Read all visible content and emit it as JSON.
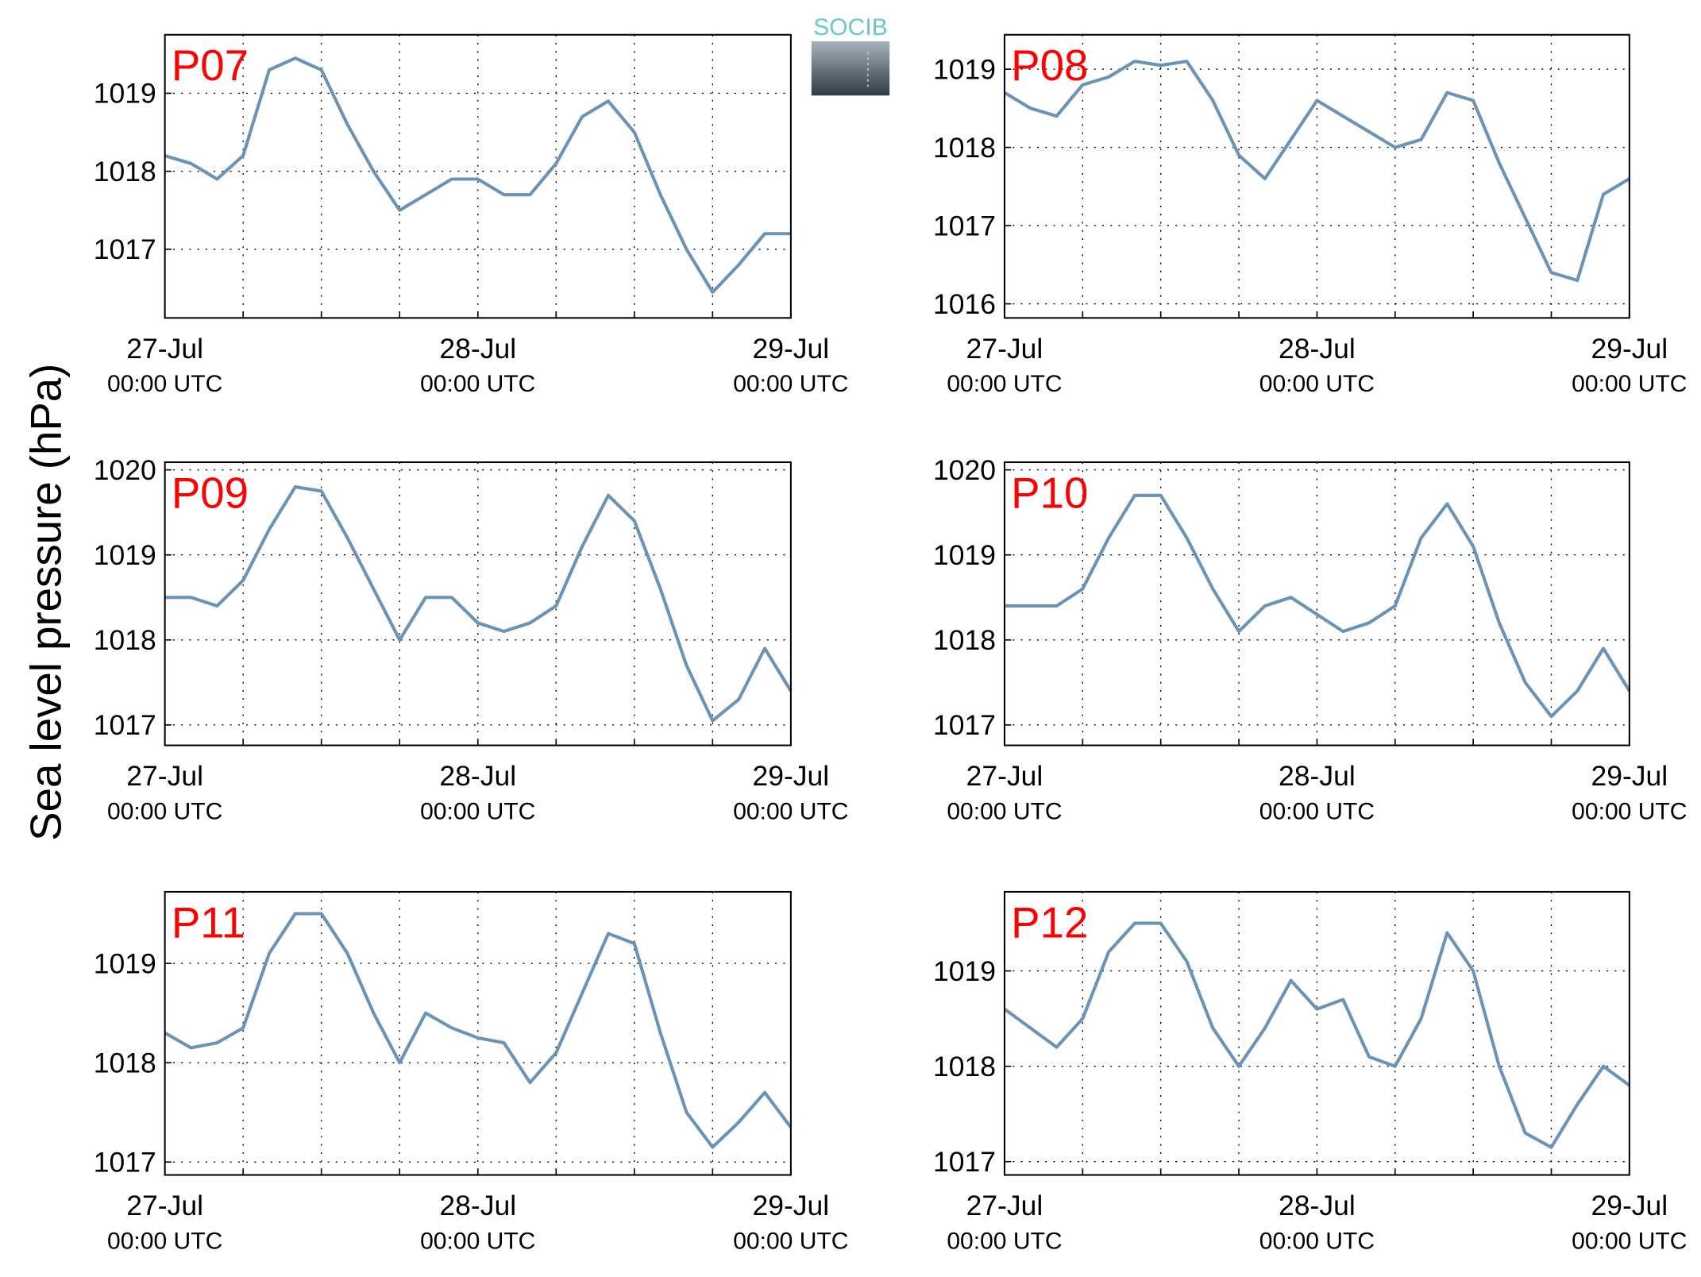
{
  "ylabel": "Sea level pressure (hPa)",
  "logo": "SOCIB",
  "chart_data": [
    {
      "type": "line",
      "title": "P07",
      "color": "#6b93b6",
      "grid": true,
      "x": [
        0,
        2,
        4,
        6,
        8,
        10,
        12,
        14,
        16,
        18,
        20,
        22,
        24,
        26,
        28,
        30,
        32,
        34,
        36,
        38,
        40,
        42,
        44,
        46,
        48
      ],
      "values": [
        1018.2,
        1018.1,
        1017.9,
        1018.2,
        1019.3,
        1019.45,
        1019.3,
        1018.6,
        1018.0,
        1017.5,
        1017.7,
        1017.9,
        1017.9,
        1017.7,
        1017.7,
        1018.1,
        1018.7,
        1018.9,
        1018.5,
        1017.7,
        1017.0,
        1016.45,
        1016.8,
        1017.2,
        1017.2
      ],
      "xlim": [
        0,
        48
      ],
      "ylim": [
        1016.12,
        1019.75
      ],
      "yticks": [
        1017,
        1018,
        1019
      ],
      "xticks": [
        {
          "value": 0,
          "label": "27-Jul",
          "sublabel": "00:00 UTC"
        },
        {
          "value": 24,
          "label": "28-Jul",
          "sublabel": "00:00 UTC"
        },
        {
          "value": 48,
          "label": "29-Jul",
          "sublabel": "00:00 UTC"
        }
      ],
      "xminorticks": [
        6,
        12,
        18,
        30,
        36,
        42
      ]
    },
    {
      "type": "line",
      "title": "P08",
      "color": "#6b93b6",
      "grid": true,
      "x": [
        0,
        2,
        4,
        6,
        8,
        10,
        12,
        14,
        16,
        18,
        20,
        22,
        24,
        26,
        28,
        30,
        32,
        34,
        36,
        38,
        40,
        42,
        44,
        46,
        48
      ],
      "values": [
        1018.7,
        1018.5,
        1018.4,
        1018.8,
        1018.9,
        1019.1,
        1019.05,
        1019.1,
        1018.6,
        1017.9,
        1017.6,
        1018.1,
        1018.6,
        1018.4,
        1018.2,
        1018.0,
        1018.1,
        1018.7,
        1018.6,
        1017.8,
        1017.1,
        1016.4,
        1016.3,
        1017.4,
        1017.6
      ],
      "xlim": [
        0,
        48
      ],
      "ylim": [
        1015.82,
        1019.44
      ],
      "yticks": [
        1016,
        1017,
        1018,
        1019
      ],
      "xticks": [
        {
          "value": 0,
          "label": "27-Jul",
          "sublabel": "00:00 UTC"
        },
        {
          "value": 24,
          "label": "28-Jul",
          "sublabel": "00:00 UTC"
        },
        {
          "value": 48,
          "label": "29-Jul",
          "sublabel": "00:00 UTC"
        }
      ],
      "xminorticks": [
        6,
        12,
        18,
        30,
        36,
        42
      ]
    },
    {
      "type": "line",
      "title": "P09",
      "color": "#6b93b6",
      "grid": true,
      "x": [
        0,
        2,
        4,
        6,
        8,
        10,
        12,
        14,
        16,
        18,
        20,
        22,
        24,
        26,
        28,
        30,
        32,
        34,
        36,
        38,
        40,
        42,
        44,
        46,
        48
      ],
      "values": [
        1018.5,
        1018.5,
        1018.4,
        1018.7,
        1019.3,
        1019.8,
        1019.75,
        1019.2,
        1018.6,
        1018.0,
        1018.5,
        1018.5,
        1018.2,
        1018.1,
        1018.2,
        1018.4,
        1019.1,
        1019.7,
        1019.4,
        1018.6,
        1017.7,
        1017.05,
        1017.3,
        1017.9,
        1017.4
      ],
      "xlim": [
        0,
        48
      ],
      "ylim": [
        1016.76,
        1020.09
      ],
      "yticks": [
        1017,
        1018,
        1019,
        1020
      ],
      "xticks": [
        {
          "value": 0,
          "label": "27-Jul",
          "sublabel": "00:00 UTC"
        },
        {
          "value": 24,
          "label": "28-Jul",
          "sublabel": "00:00 UTC"
        },
        {
          "value": 48,
          "label": "29-Jul",
          "sublabel": "00:00 UTC"
        }
      ],
      "xminorticks": [
        6,
        12,
        18,
        30,
        36,
        42
      ]
    },
    {
      "type": "line",
      "title": "P10",
      "color": "#6b93b6",
      "grid": true,
      "x": [
        0,
        2,
        4,
        6,
        8,
        10,
        12,
        14,
        16,
        18,
        20,
        22,
        24,
        26,
        28,
        30,
        32,
        34,
        36,
        38,
        40,
        42,
        44,
        46,
        48
      ],
      "values": [
        1018.4,
        1018.4,
        1018.4,
        1018.6,
        1019.2,
        1019.7,
        1019.7,
        1019.2,
        1018.6,
        1018.1,
        1018.4,
        1018.5,
        1018.3,
        1018.1,
        1018.2,
        1018.4,
        1019.2,
        1019.6,
        1019.1,
        1018.2,
        1017.5,
        1017.1,
        1017.4,
        1017.9,
        1017.4
      ],
      "xlim": [
        0,
        48
      ],
      "ylim": [
        1016.76,
        1020.09
      ],
      "yticks": [
        1017,
        1018,
        1019,
        1020
      ],
      "xticks": [
        {
          "value": 0,
          "label": "27-Jul",
          "sublabel": "00:00 UTC"
        },
        {
          "value": 24,
          "label": "28-Jul",
          "sublabel": "00:00 UTC"
        },
        {
          "value": 48,
          "label": "29-Jul",
          "sublabel": "00:00 UTC"
        }
      ],
      "xminorticks": [
        6,
        12,
        18,
        30,
        36,
        42
      ]
    },
    {
      "type": "line",
      "title": "P11",
      "color": "#6b93b6",
      "grid": true,
      "x": [
        0,
        2,
        4,
        6,
        8,
        10,
        12,
        14,
        16,
        18,
        20,
        22,
        24,
        26,
        28,
        30,
        32,
        34,
        36,
        38,
        40,
        42,
        44,
        46,
        48
      ],
      "values": [
        1018.3,
        1018.15,
        1018.2,
        1018.35,
        1019.1,
        1019.5,
        1019.5,
        1019.1,
        1018.5,
        1018.0,
        1018.5,
        1018.35,
        1018.25,
        1018.2,
        1017.8,
        1018.1,
        1018.7,
        1019.3,
        1019.2,
        1018.3,
        1017.5,
        1017.15,
        1017.4,
        1017.7,
        1017.35
      ],
      "xlim": [
        0,
        48
      ],
      "ylim": [
        1016.87,
        1019.72
      ],
      "yticks": [
        1017,
        1018,
        1019
      ],
      "xticks": [
        {
          "value": 0,
          "label": "27-Jul",
          "sublabel": "00:00 UTC"
        },
        {
          "value": 24,
          "label": "28-Jul",
          "sublabel": "00:00 UTC"
        },
        {
          "value": 48,
          "label": "29-Jul",
          "sublabel": "00:00 UTC"
        }
      ],
      "xminorticks": [
        6,
        12,
        18,
        30,
        36,
        42
      ]
    },
    {
      "type": "line",
      "title": "P12",
      "color": "#6b93b6",
      "grid": true,
      "x": [
        0,
        2,
        4,
        6,
        8,
        10,
        12,
        14,
        16,
        18,
        20,
        22,
        24,
        26,
        28,
        30,
        32,
        34,
        36,
        38,
        40,
        42,
        44,
        46,
        48
      ],
      "values": [
        1018.6,
        1018.4,
        1018.2,
        1018.5,
        1019.2,
        1019.5,
        1019.5,
        1019.1,
        1018.4,
        1018.0,
        1018.4,
        1018.9,
        1018.6,
        1018.7,
        1018.1,
        1018.0,
        1018.5,
        1019.4,
        1019.0,
        1018.0,
        1017.3,
        1017.15,
        1017.6,
        1018.0,
        1017.8
      ],
      "xlim": [
        0,
        48
      ],
      "ylim": [
        1016.86,
        1019.83
      ],
      "yticks": [
        1017,
        1018,
        1019
      ],
      "xticks": [
        {
          "value": 0,
          "label": "27-Jul",
          "sublabel": "00:00 UTC"
        },
        {
          "value": 24,
          "label": "28-Jul",
          "sublabel": "00:00 UTC"
        },
        {
          "value": 48,
          "label": "29-Jul",
          "sublabel": "00:00 UTC"
        }
      ],
      "xminorticks": [
        6,
        12,
        18,
        30,
        36,
        42
      ]
    }
  ]
}
